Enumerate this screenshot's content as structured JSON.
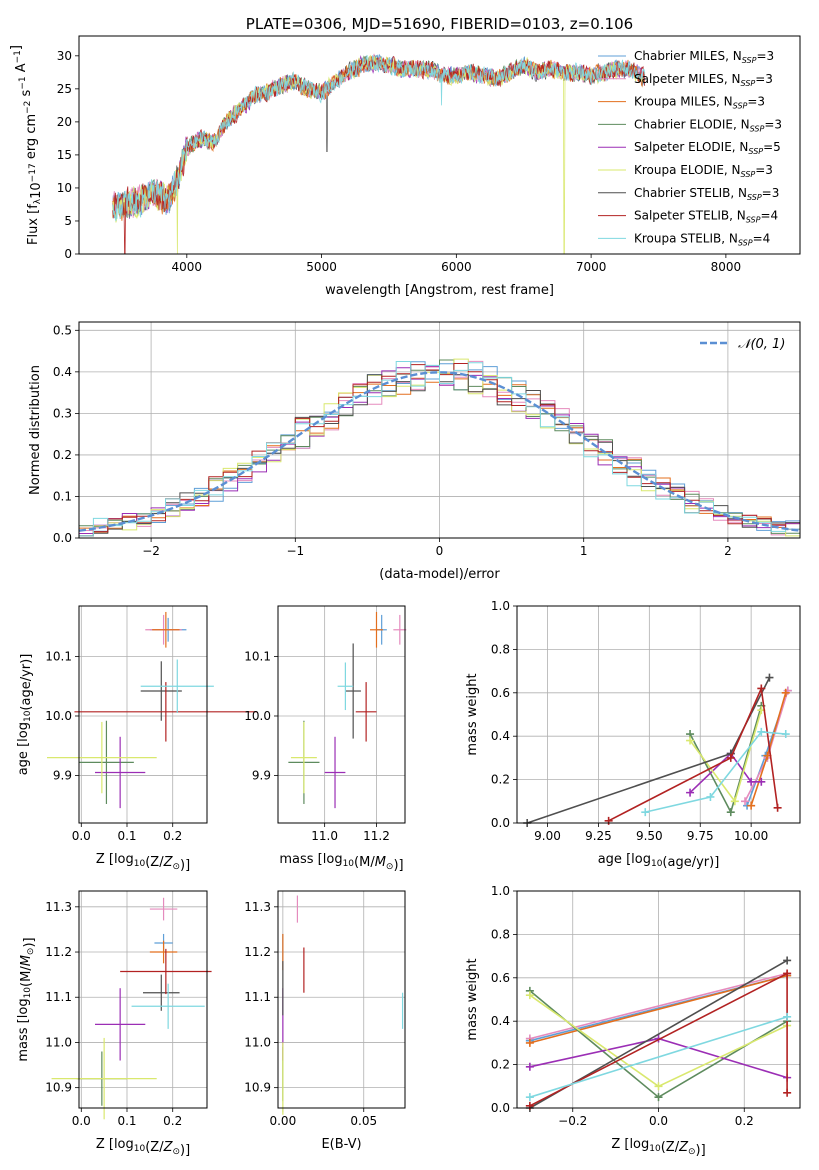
{
  "chart_data": [
    {
      "type": "line",
      "title": "PLATE=0306, MJD=51690, FIBERID=0103, z=0.106",
      "xlabel": "wavelength [Angstrom, rest frame]",
      "ylabel": "Flux [f_λ10^-17 erg cm^-2 s^-1 A^-1]",
      "xlim": [
        3200,
        8550
      ],
      "ylim": [
        0,
        33
      ],
      "xticks": [
        4000,
        5000,
        6000,
        7000,
        8000
      ],
      "yticks": [
        0,
        5,
        10,
        15,
        20,
        25,
        30
      ],
      "grid": false,
      "legend_position": "upper-right",
      "spectrum_anchors": {
        "x": [
          3450,
          3550,
          3650,
          3750,
          3850,
          3930,
          4000,
          4100,
          4200,
          4300,
          4400,
          4500,
          4600,
          4700,
          4800,
          4900,
          5000,
          5100,
          5200,
          5300,
          5400,
          5500,
          5600,
          5700,
          5800,
          5900,
          6000,
          6100,
          6200,
          6300,
          6400,
          6500,
          6600,
          6700,
          6800,
          6900,
          7000,
          7100,
          7200,
          7300,
          7400
        ],
        "y": [
          7,
          7.5,
          8,
          9.5,
          8,
          11,
          16,
          17.5,
          17,
          20,
          22,
          24,
          24.5,
          25.5,
          26,
          25,
          24.5,
          26,
          27.5,
          28.5,
          29,
          28.5,
          28,
          28,
          28,
          27,
          27,
          27.5,
          27,
          26.5,
          27.5,
          28.5,
          27.5,
          28,
          27.5,
          27.5,
          27,
          27.5,
          28,
          28,
          26.5
        ]
      },
      "dips": [
        {
          "x": 3540,
          "y": 0,
          "series": "Salpeter STELIB"
        },
        {
          "x": 3930,
          "y": 0,
          "series": "Kroupa ELODIE"
        },
        {
          "x": 5890,
          "y": 22.5,
          "series": "Kroupa STELIB"
        },
        {
          "x": 6800,
          "y": 0,
          "series": "Kroupa ELODIE"
        },
        {
          "x": 7420,
          "y": 0,
          "series": "Salpeter STELIB"
        },
        {
          "x": 5040,
          "y": 15.5,
          "series": "Chabrier STELIB"
        }
      ],
      "series": [
        {
          "name": "Chabrier MILES",
          "nssp": "3",
          "color": "#5f9fd7"
        },
        {
          "name": "Salpeter MILES",
          "nssp": "3",
          "color": "#e58bbd"
        },
        {
          "name": "Kroupa MILES",
          "nssp": "3",
          "color": "#e36f1e"
        },
        {
          "name": "Chabrier ELODIE",
          "nssp": "3",
          "color": "#5e8b5e"
        },
        {
          "name": "Salpeter ELODIE",
          "nssp": "5",
          "color": "#9b2eb5"
        },
        {
          "name": "Kroupa ELODIE",
          "nssp": "3",
          "color": "#d9e86e"
        },
        {
          "name": "Chabrier STELIB",
          "nssp": "3",
          "color": "#4f4f4f"
        },
        {
          "name": "Salpeter STELIB",
          "nssp": "4",
          "color": "#b22222"
        },
        {
          "name": "Kroupa STELIB",
          "nssp": "4",
          "color": "#7fd8e0"
        }
      ]
    },
    {
      "type": "line",
      "xlabel": "(data-model)/error",
      "ylabel": "Normed distribution",
      "xlim": [
        -2.5,
        2.5
      ],
      "ylim": [
        0,
        0.52
      ],
      "xticks": [
        -2,
        -1,
        0,
        1,
        2
      ],
      "yticks": [
        0.0,
        0.1,
        0.2,
        0.3,
        0.4,
        0.5
      ],
      "grid": true,
      "legend_position": "upper-right",
      "legend_label": "𝒩(0, 1)",
      "gaussian_color": "#5b8fd3",
      "bin_width": 0.1
    },
    {
      "type": "scatter",
      "xlabel": "Z [log10(Z/Z⊙)]",
      "ylabel": "age [log10(age/yr)]",
      "xlim": [
        -0.005,
        0.275
      ],
      "ylim": [
        9.82,
        10.185
      ],
      "xticks": [
        0.0,
        0.1,
        0.2
      ],
      "yticks": [
        9.9,
        10.0,
        10.1
      ],
      "grid": true,
      "points": [
        {
          "series": "Chabrier MILES",
          "x": 0.19,
          "y": 10.145,
          "xerr": 0.04,
          "yerr": 0.02
        },
        {
          "series": "Salpeter MILES",
          "x": 0.18,
          "y": 10.145,
          "xerr": 0.04,
          "yerr": 0.025
        },
        {
          "series": "Kroupa MILES",
          "x": 0.185,
          "y": 10.145,
          "xerr": 0.03,
          "yerr": 0.03
        },
        {
          "series": "Chabrier ELODIE",
          "x": 0.055,
          "y": 9.922,
          "xerr": 0.06,
          "yerr": 0.07
        },
        {
          "series": "Salpeter ELODIE",
          "x": 0.085,
          "y": 9.905,
          "xerr": 0.055,
          "yerr": 0.06
        },
        {
          "series": "Kroupa ELODIE",
          "x": 0.045,
          "y": 9.93,
          "xerr": 0.12,
          "yerr": 0.06
        },
        {
          "series": "Chabrier STELIB",
          "x": 0.175,
          "y": 10.042,
          "xerr": 0.045,
          "yerr": 0.05
        },
        {
          "series": "Salpeter STELIB",
          "x": 0.185,
          "y": 10.007,
          "xerr": 0.2,
          "yerr": 0.05
        },
        {
          "series": "Kroupa STELIB",
          "x": 0.21,
          "y": 10.05,
          "xerr": 0.08,
          "yerr": 0.045
        }
      ]
    },
    {
      "type": "scatter",
      "xlabel": "mass [log10(M/M⊙)]",
      "ylabel": "",
      "xlim": [
        10.82,
        11.31
      ],
      "ylim": [
        9.82,
        10.185
      ],
      "xticks": [
        11.0,
        11.2
      ],
      "yticks": [
        9.9,
        10.0,
        10.1
      ],
      "grid": true,
      "points": [
        {
          "series": "Chabrier MILES",
          "x": 11.22,
          "y": 10.145,
          "xerr": 0.02,
          "yerr": 0.025
        },
        {
          "series": "Salpeter MILES",
          "x": 11.29,
          "y": 10.145,
          "xerr": 0.025,
          "yerr": 0.025
        },
        {
          "series": "Kroupa MILES",
          "x": 11.2,
          "y": 10.145,
          "xerr": 0.025,
          "yerr": 0.03
        },
        {
          "series": "Chabrier ELODIE",
          "x": 10.92,
          "y": 9.922,
          "xerr": 0.06,
          "yerr": 0.07
        },
        {
          "series": "Salpeter ELODIE",
          "x": 11.04,
          "y": 9.905,
          "xerr": 0.04,
          "yerr": 0.06
        },
        {
          "series": "Kroupa ELODIE",
          "x": 10.92,
          "y": 9.93,
          "xerr": 0.05,
          "yerr": 0.06
        },
        {
          "series": "Chabrier STELIB",
          "x": 11.11,
          "y": 10.042,
          "xerr": 0.03,
          "yerr": 0.08
        },
        {
          "series": "Salpeter STELIB",
          "x": 11.16,
          "y": 10.007,
          "xerr": 0.04,
          "yerr": 0.05
        },
        {
          "series": "Kroupa STELIB",
          "x": 11.08,
          "y": 10.05,
          "xerr": 0.03,
          "yerr": 0.04
        }
      ]
    },
    {
      "type": "line",
      "xlabel": "age [log10(age/yr)]",
      "ylabel": "mass weight",
      "xlim": [
        8.85,
        10.24
      ],
      "ylim": [
        0.0,
        1.0
      ],
      "xticks": [
        9.0,
        9.25,
        9.5,
        9.75,
        10.0
      ],
      "yticks": [
        0.0,
        0.2,
        0.4,
        0.6,
        0.8,
        1.0
      ],
      "grid": true,
      "series": [
        {
          "name": "Chabrier MILES",
          "x": [
            9.98,
            10.07,
            10.18
          ],
          "y": [
            0.08,
            0.31,
            0.61
          ]
        },
        {
          "name": "Salpeter MILES",
          "x": [
            9.97,
            10.08,
            10.18
          ],
          "y": [
            0.1,
            0.3,
            0.61
          ]
        },
        {
          "name": "Kroupa MILES",
          "x": [
            10.0,
            10.08,
            10.17
          ],
          "y": [
            0.08,
            0.31,
            0.6
          ]
        },
        {
          "name": "Chabrier ELODIE",
          "x": [
            9.7,
            9.9,
            10.05
          ],
          "y": [
            0.41,
            0.05,
            0.54
          ]
        },
        {
          "name": "Salpeter ELODIE",
          "x": [
            9.7,
            9.9,
            10.0,
            10.05
          ],
          "y": [
            0.14,
            0.32,
            0.19,
            0.19
          ]
        },
        {
          "name": "Kroupa ELODIE",
          "x": [
            9.7,
            9.92,
            10.05
          ],
          "y": [
            0.38,
            0.1,
            0.52
          ]
        },
        {
          "name": "Chabrier STELIB",
          "x": [
            8.9,
            9.9,
            10.09
          ],
          "y": [
            0.0,
            0.32,
            0.67
          ]
        },
        {
          "name": "Salpeter STELIB",
          "x": [
            9.3,
            9.9,
            10.05,
            10.13
          ],
          "y": [
            0.01,
            0.3,
            0.62,
            0.07
          ]
        },
        {
          "name": "Kroupa STELIB",
          "x": [
            9.48,
            9.8,
            10.05,
            10.17
          ],
          "y": [
            0.05,
            0.12,
            0.42,
            0.41
          ]
        }
      ]
    },
    {
      "type": "scatter",
      "xlabel": "Z [log10(Z/Z⊙)]",
      "ylabel": "mass [log10(M/M⊙)]",
      "xlim": [
        -0.005,
        0.275
      ],
      "ylim": [
        10.855,
        11.335
      ],
      "xticks": [
        0.0,
        0.1,
        0.2
      ],
      "yticks": [
        10.9,
        11.0,
        11.1,
        11.2,
        11.3
      ],
      "grid": true,
      "points": [
        {
          "series": "Chabrier MILES",
          "x": 0.18,
          "y": 11.22,
          "xerr": 0.02,
          "yerr": 0.02
        },
        {
          "series": "Salpeter MILES",
          "x": 0.18,
          "y": 11.295,
          "xerr": 0.03,
          "yerr": 0.025
        },
        {
          "series": "Kroupa MILES",
          "x": 0.18,
          "y": 11.2,
          "xerr": 0.03,
          "yerr": 0.025
        },
        {
          "series": "Chabrier ELODIE",
          "x": 0.045,
          "y": 10.92,
          "xerr": 0.055,
          "yerr": 0.06
        },
        {
          "series": "Salpeter ELODIE",
          "x": 0.085,
          "y": 11.04,
          "xerr": 0.055,
          "yerr": 0.08
        },
        {
          "series": "Kroupa ELODIE",
          "x": 0.05,
          "y": 10.92,
          "xerr": 0.115,
          "yerr": 0.09
        },
        {
          "series": "Chabrier STELIB",
          "x": 0.175,
          "y": 11.11,
          "xerr": 0.04,
          "yerr": 0.04
        },
        {
          "series": "Salpeter STELIB",
          "x": 0.185,
          "y": 11.157,
          "xerr": 0.1,
          "yerr": 0.05
        },
        {
          "series": "Kroupa STELIB",
          "x": 0.19,
          "y": 11.08,
          "xerr": 0.08,
          "yerr": 0.05
        }
      ]
    },
    {
      "type": "scatter",
      "xlabel": "E(B-V)",
      "ylabel": "",
      "xlim": [
        -0.003,
        0.0755
      ],
      "ylim": [
        10.855,
        11.335
      ],
      "xticks": [
        0.0,
        0.05
      ],
      "yticks": [
        10.9,
        11.0,
        11.1,
        11.2,
        11.3
      ],
      "grid": true,
      "points": [
        {
          "series": "Chabrier MILES",
          "x": 0.0,
          "y": 11.21,
          "xerr": 0,
          "yerr": 0.03
        },
        {
          "series": "Salpeter MILES",
          "x": 0.009,
          "y": 11.295,
          "xerr": 0,
          "yerr": 0.03
        },
        {
          "series": "Kroupa MILES",
          "x": 0.0,
          "y": 11.2,
          "xerr": 0,
          "yerr": 0.04
        },
        {
          "series": "Chabrier ELODIE",
          "x": 0.0,
          "y": 10.93,
          "xerr": 0,
          "yerr": 0.06
        },
        {
          "series": "Salpeter ELODIE",
          "x": 0.0,
          "y": 11.04,
          "xerr": 0,
          "yerr": 0.08
        },
        {
          "series": "Kroupa ELODIE",
          "x": 0.0,
          "y": 10.92,
          "xerr": 0,
          "yerr": 0.08
        },
        {
          "series": "Chabrier STELIB",
          "x": 0.0,
          "y": 11.12,
          "xerr": 0,
          "yerr": 0.06
        },
        {
          "series": "Salpeter STELIB",
          "x": 0.013,
          "y": 11.16,
          "xerr": 0,
          "yerr": 0.05
        },
        {
          "series": "Kroupa STELIB",
          "x": 0.074,
          "y": 11.07,
          "xerr": 0,
          "yerr": 0.04
        }
      ]
    },
    {
      "type": "line",
      "xlabel": "Z [log10(Z/Z⊙)]",
      "ylabel": "mass weight",
      "xlim": [
        -0.33,
        0.33
      ],
      "ylim": [
        0.0,
        1.0
      ],
      "xticks": [
        -0.2,
        0.0,
        0.2
      ],
      "yticks": [
        0.0,
        0.2,
        0.4,
        0.6,
        0.8,
        1.0
      ],
      "grid": true,
      "series": [
        {
          "name": "Chabrier MILES",
          "x": [
            -0.3,
            0.3
          ],
          "y": [
            0.31,
            0.61
          ]
        },
        {
          "name": "Salpeter MILES",
          "x": [
            -0.3,
            0.3
          ],
          "y": [
            0.32,
            0.62
          ]
        },
        {
          "name": "Kroupa MILES",
          "x": [
            -0.3,
            0.3
          ],
          "y": [
            0.3,
            0.61
          ]
        },
        {
          "name": "Chabrier ELODIE",
          "x": [
            -0.3,
            0.0,
            0.3
          ],
          "y": [
            0.54,
            0.05,
            0.4
          ]
        },
        {
          "name": "Salpeter ELODIE",
          "x": [
            -0.3,
            0.0,
            0.3
          ],
          "y": [
            0.19,
            0.32,
            0.14
          ]
        },
        {
          "name": "Kroupa ELODIE",
          "x": [
            -0.3,
            0.0,
            0.3
          ],
          "y": [
            0.52,
            0.1,
            0.38
          ]
        },
        {
          "name": "Chabrier STELIB",
          "x": [
            -0.3,
            0.3
          ],
          "y": [
            0.0,
            0.68
          ]
        },
        {
          "name": "Salpeter STELIB",
          "x": [
            -0.3,
            0.3,
            0.3
          ],
          "y": [
            0.01,
            0.62,
            0.07
          ]
        },
        {
          "name": "Kroupa STELIB",
          "x": [
            -0.3,
            0.3
          ],
          "y": [
            0.05,
            0.42
          ]
        }
      ]
    }
  ]
}
